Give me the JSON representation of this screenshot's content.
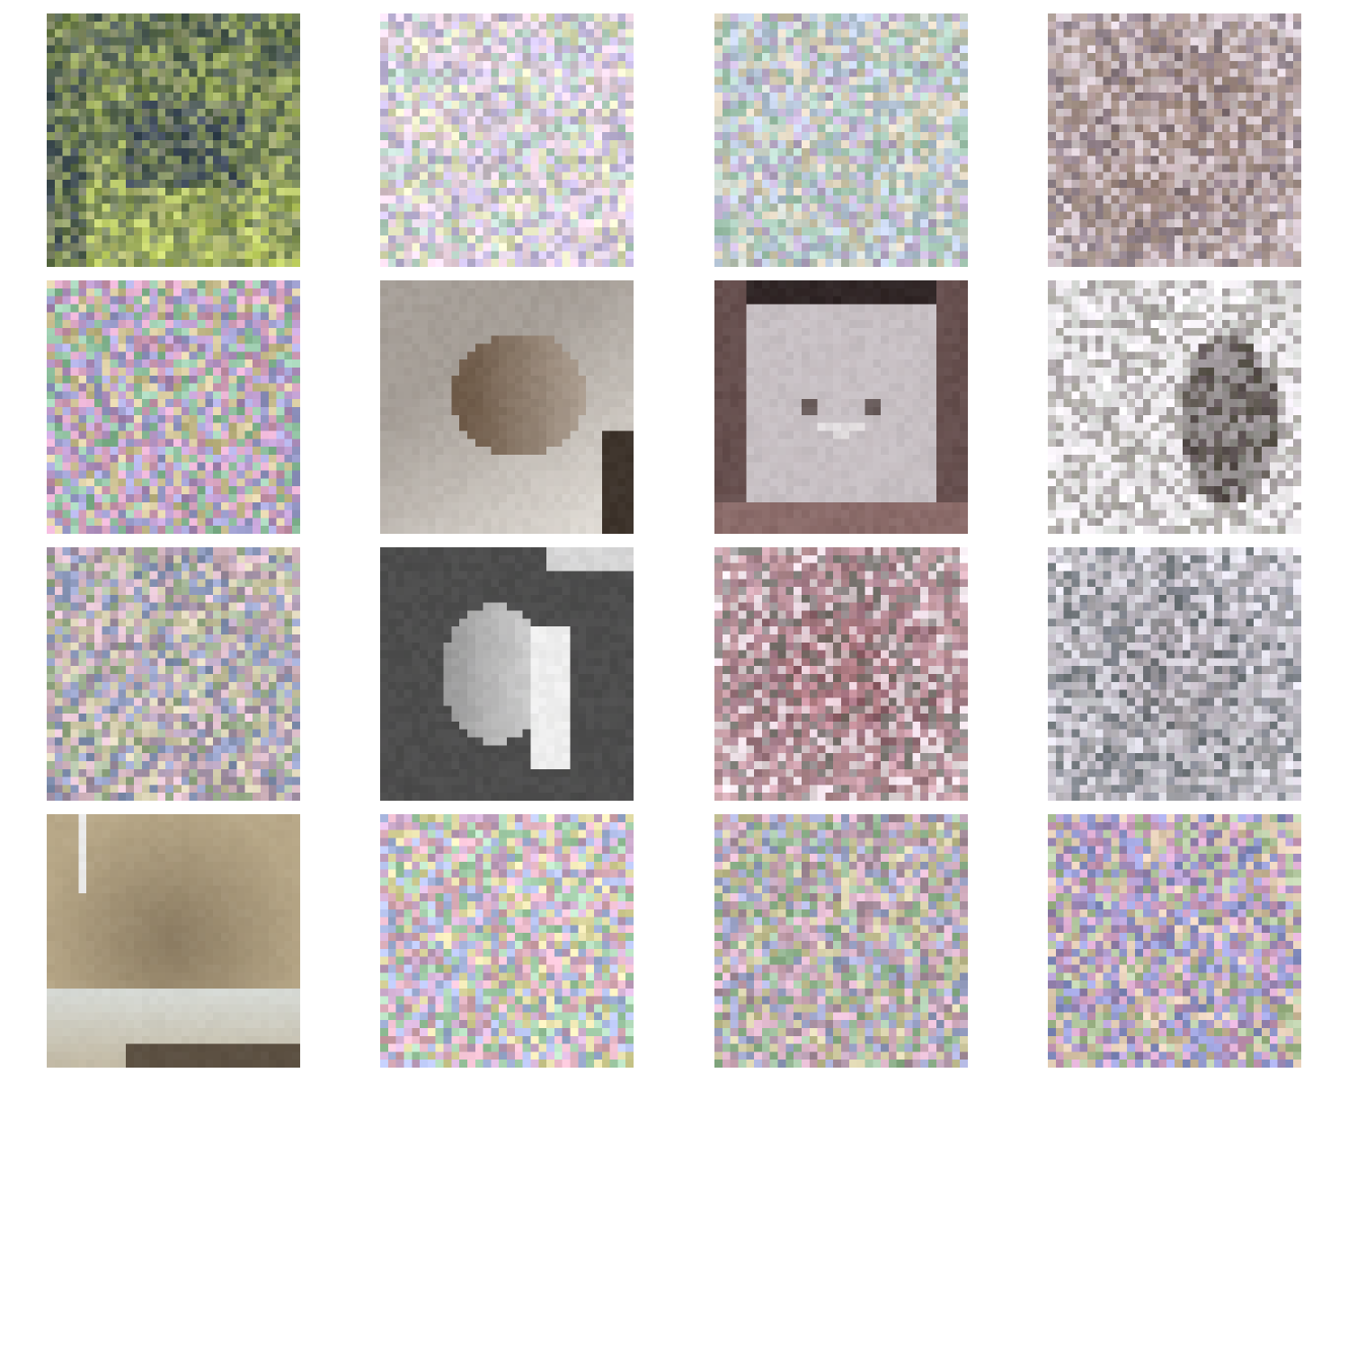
{
  "grid": {
    "rows": 4,
    "cols": 4,
    "pixels_per_side": 32,
    "tiles": [
      {
        "subject": "noisy-scene",
        "noise": 0.62,
        "palette": [
          "#5a6a55",
          "#7a8a4a",
          "#c8d86a",
          "#3e4a5a",
          "#a0a070"
        ]
      },
      {
        "subject": "pure-noise",
        "noise": 0.95,
        "palette": [
          "#d8c8d8",
          "#b8d8c8",
          "#e8e8b8",
          "#c8b8e8",
          "#f0d0e0"
        ]
      },
      {
        "subject": "pure-noise",
        "noise": 0.92,
        "palette": [
          "#c8d0c0",
          "#b8c8e0",
          "#e0d0b0",
          "#c0a8d0",
          "#a8d0b8"
        ]
      },
      {
        "subject": "noisy-cat",
        "noise": 0.65,
        "palette": [
          "#8a7068",
          "#a08a7a",
          "#e8e0e8",
          "#6a5a6a",
          "#c8b8c0"
        ]
      },
      {
        "subject": "pure-noise",
        "noise": 0.98,
        "palette": [
          "#b890c8",
          "#90c8a0",
          "#d8c890",
          "#a0a0d8",
          "#e0a0c0"
        ]
      },
      {
        "subject": "clean-cat-face",
        "noise": 0.05,
        "palette": [
          "#a69f98",
          "#6e5a48",
          "#e8e4de",
          "#3a3028",
          "#c4b8ac"
        ]
      },
      {
        "subject": "clean-kitten",
        "noise": 0.06,
        "palette": [
          "#c9c2c6",
          "#2a2020",
          "#8a6a68",
          "#e6e2e4",
          "#a0908e"
        ]
      },
      {
        "subject": "noisy-cat-silhouette",
        "noise": 0.55,
        "palette": [
          "#5a5050",
          "#e8e4ec",
          "#f4f0f4",
          "#6a6858",
          "#c8d0c8"
        ]
      },
      {
        "subject": "pure-noise",
        "noise": 0.9,
        "palette": [
          "#b098b8",
          "#a0b890",
          "#e0d8b0",
          "#8898c8",
          "#e8c0d0"
        ]
      },
      {
        "subject": "grayscale-cat",
        "noise": 0.05,
        "palette": [
          "#4a4a4a",
          "#d8d8d8",
          "#f2f2f2",
          "#303030",
          "#8a8a8a"
        ]
      },
      {
        "subject": "noisy-cat-face",
        "noise": 0.75,
        "palette": [
          "#8a5a68",
          "#a87880",
          "#f0e8ec",
          "#6a7068",
          "#c8909a"
        ]
      },
      {
        "subject": "noisy-cat",
        "noise": 0.7,
        "palette": [
          "#8a8a90",
          "#c8c0c8",
          "#e8e8f0",
          "#505860",
          "#a8a0a8"
        ]
      },
      {
        "subject": "blurry-cat",
        "noise": 0.04,
        "palette": [
          "#b8a888",
          "#8a7a60",
          "#d8dcd8",
          "#5a4e40",
          "#a09880"
        ]
      },
      {
        "subject": "pure-noise",
        "noise": 1.0,
        "palette": [
          "#d0a8d0",
          "#a8d8b0",
          "#e8e0a0",
          "#a8b8e8",
          "#e8b0c0"
        ]
      },
      {
        "subject": "pure-noise",
        "noise": 0.97,
        "palette": [
          "#b898b0",
          "#98c098",
          "#d8d0a0",
          "#a0a8d8",
          "#e0b0c8"
        ]
      },
      {
        "subject": "pure-noise",
        "noise": 1.0,
        "palette": [
          "#a890c8",
          "#b0c898",
          "#e0c8a8",
          "#9098d8",
          "#d8a0c8"
        ]
      }
    ]
  }
}
